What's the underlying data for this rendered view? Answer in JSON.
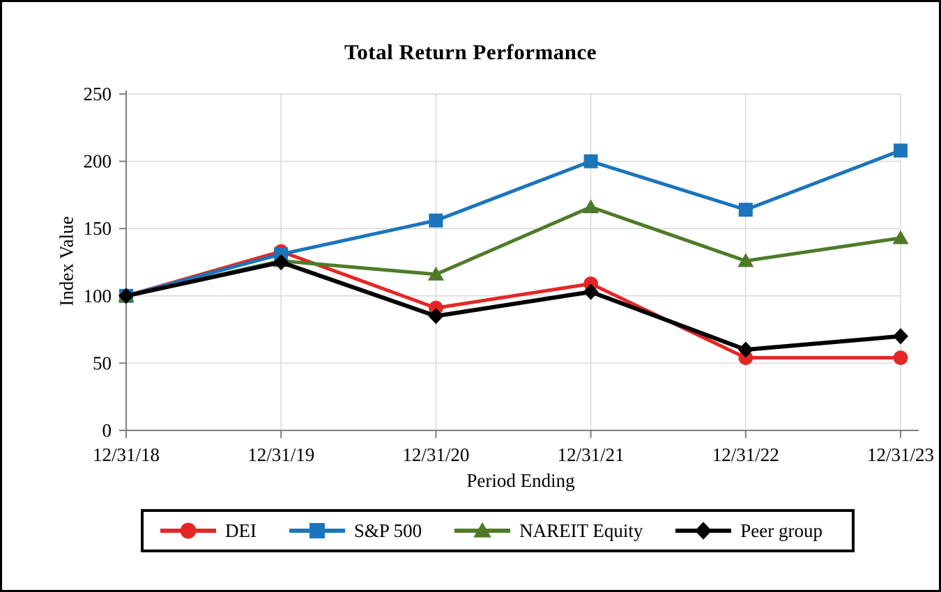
{
  "window": {
    "background": "#ffffff",
    "frame_border_color": "#000000"
  },
  "chart_data": {
    "type": "line",
    "title": "Total Return Performance",
    "xlabel": "Period Ending",
    "ylabel": "Index Value",
    "categories": [
      "12/31/18",
      "12/31/19",
      "12/31/20",
      "12/31/21",
      "12/31/22",
      "12/31/23"
    ],
    "y_ticks": [
      0,
      50,
      100,
      150,
      200,
      250
    ],
    "ylim": [
      0,
      250
    ],
    "grid": true,
    "legend_position": "bottom",
    "series": [
      {
        "name": "DEI",
        "color": "#E42726",
        "marker": "circle",
        "values": [
          100,
          133,
          91,
          109,
          54,
          54
        ]
      },
      {
        "name": "S&P 500",
        "color": "#1B75BC",
        "marker": "square",
        "values": [
          100,
          131,
          156,
          200,
          164,
          208
        ]
      },
      {
        "name": "NAREIT Equity",
        "color": "#4F7B28",
        "marker": "triangle",
        "values": [
          100,
          126,
          116,
          166,
          126,
          143
        ]
      },
      {
        "name": "Peer group",
        "color": "#000000",
        "marker": "diamond",
        "values": [
          100,
          125,
          85,
          103,
          60,
          70
        ]
      }
    ],
    "style_colors": {
      "gridline": "#D9D9D9",
      "axis": "#7F7F7F"
    }
  }
}
